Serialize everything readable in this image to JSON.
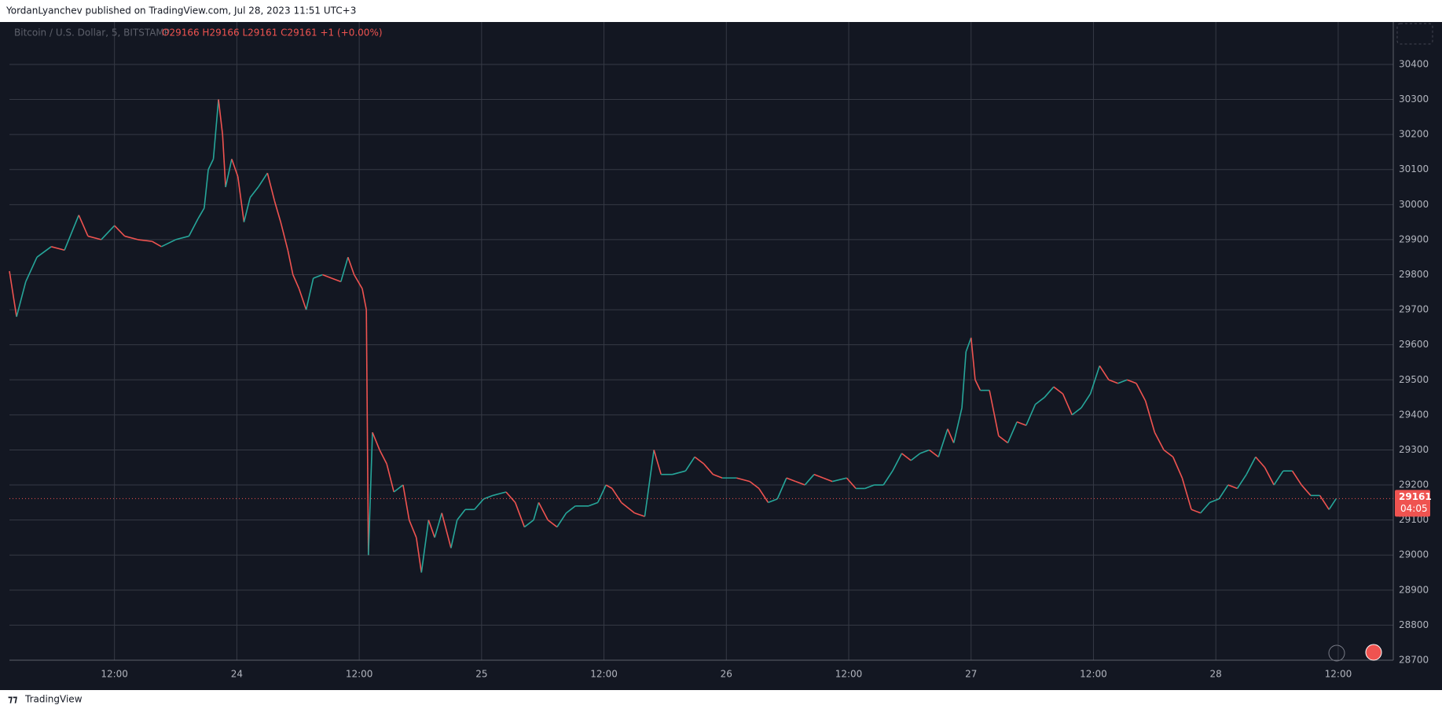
{
  "header": {
    "title": "YordanLyanchev published on TradingView.com, Jul 28, 2023 11:51 UTC+3"
  },
  "footer": {
    "brand": "TradingView"
  },
  "chart_data": {
    "type": "line",
    "symbol": "Bitcoin / U.S. Dollar, 5, BITSTAMP",
    "ohlc": "O29166 H29166 L29161 C29161 +1 (+0.00%)",
    "last_price": 29161,
    "countdown": "04:05",
    "up_color": "#26a69a",
    "down_color": "#ef5350",
    "grid": true,
    "x": [
      1.7,
      2.4,
      3.3,
      4.4,
      5.8,
      7.1,
      8.5,
      9.4,
      10.7,
      12.0,
      13.0,
      14.3,
      15.7,
      16.6,
      18.0,
      19.3,
      20.2,
      20.8,
      21.2,
      21.7,
      22.2,
      22.6,
      22.9,
      23.5,
      24.1,
      24.7,
      25.3,
      26.1,
      27.0,
      27.7,
      28.3,
      29.0,
      29.5,
      30.1,
      30.8,
      31.5,
      32.4,
      33.3,
      34.2,
      34.9,
      35.5,
      36.3,
      36.7,
      36.9,
      37.3,
      38.0,
      38.7,
      39.4,
      40.3,
      40.9,
      41.6,
      42.1,
      42.8,
      43.4,
      44.1,
      45.0,
      45.6,
      46.4,
      47.3,
      48.2,
      49.1,
      50.4,
      51.3,
      52.2,
      53.1,
      53.6,
      54.5,
      55.4,
      56.3,
      57.2,
      58.5,
      59.4,
      60.2,
      60.8,
      61.7,
      63.0,
      64.0,
      64.9,
      65.6,
      66.7,
      68.0,
      68.9,
      69.8,
      70.7,
      71.6,
      73.0,
      74.3,
      75.2,
      76.1,
      77.0,
      77.9,
      78.8,
      79.7,
      80.6,
      81.5,
      82.4,
      83.8,
      84.7,
      85.6,
      86.5,
      87.4,
      88.3,
      89.2,
      90.1,
      91.0,
      91.9,
      92.8,
      93.7,
      94.3,
      95.1,
      95.5,
      96.0,
      96.4,
      96.9,
      97.8,
      98.7,
      99.6,
      100.5,
      101.4,
      102.3,
      103.2,
      104.1,
      105.0,
      105.9,
      106.8,
      107.7,
      108.6,
      109.5,
      110.4,
      111.3,
      112.2,
      113.1,
      114.0,
      114.9,
      115.8,
      116.7,
      117.6,
      118.5,
      119.4,
      120.3,
      121.2,
      122.1,
      123.0,
      123.9,
      124.8,
      125.7,
      126.6,
      127.5,
      128.4,
      129.3,
      130.2,
      131.1,
      131.8
    ],
    "series": [
      {
        "name": "Bitcoin / U.S. Dollar",
        "color": "#26a69a",
        "values": [
          29810,
          29680,
          29780,
          29850,
          29880,
          29870,
          29970,
          29910,
          29900,
          29940,
          29910,
          29900,
          29895,
          29880,
          29900,
          29910,
          29960,
          29990,
          30100,
          30130,
          30300,
          30200,
          30050,
          30130,
          30080,
          29950,
          30020,
          30050,
          30090,
          30010,
          29950,
          29870,
          29800,
          29760,
          29700,
          29790,
          29800,
          29790,
          29780,
          29850,
          29800,
          29760,
          29700,
          29000,
          29350,
          29300,
          29260,
          29180,
          29200,
          29100,
          29050,
          28950,
          29100,
          29050,
          29120,
          29020,
          29100,
          29130,
          29130,
          29160,
          29170,
          29180,
          29150,
          29080,
          29100,
          29150,
          29100,
          29080,
          29120,
          29140,
          29140,
          29150,
          29200,
          29190,
          29150,
          29120,
          29110,
          29300,
          29230,
          29230,
          29240,
          29280,
          29260,
          29230,
          29220,
          29220,
          29210,
          29190,
          29150,
          29160,
          29220,
          29210,
          29200,
          29230,
          29220,
          29210,
          29220,
          29190,
          29190,
          29200,
          29200,
          29240,
          29290,
          29270,
          29290,
          29300,
          29280,
          29360,
          29320,
          29420,
          29580,
          29620,
          29500,
          29470,
          29470,
          29340,
          29320,
          29380,
          29370,
          29430,
          29450,
          29480,
          29460,
          29400,
          29420,
          29460,
          29540,
          29500,
          29490,
          29500,
          29490,
          29440,
          29350,
          29300,
          29280,
          29220,
          29130,
          29120,
          29150,
          29160,
          29200,
          29190,
          29230,
          29280,
          29250,
          29200,
          29240,
          29240,
          29200,
          29170,
          29170,
          29130,
          29161
        ]
      }
    ],
    "xlim": [
      1.7,
      137.4
    ],
    "xticks": [
      {
        "value": 12,
        "label": "12:00"
      },
      {
        "value": 24,
        "label": "24"
      },
      {
        "value": 36,
        "label": "12:00"
      },
      {
        "value": 48,
        "label": "25"
      },
      {
        "value": 60,
        "label": "12:00"
      },
      {
        "value": 72,
        "label": "26"
      },
      {
        "value": 84,
        "label": "12:00"
      },
      {
        "value": 96,
        "label": "27"
      },
      {
        "value": 108,
        "label": "12:00"
      },
      {
        "value": 120,
        "label": "28"
      },
      {
        "value": 132,
        "label": "12:00"
      }
    ],
    "ylim": [
      28700,
      30521
    ],
    "yticks": [
      28700,
      28800,
      28900,
      29000,
      29100,
      29200,
      29300,
      29400,
      29500,
      29600,
      29700,
      29800,
      29900,
      30000,
      30100,
      30200,
      30300,
      30400
    ]
  }
}
